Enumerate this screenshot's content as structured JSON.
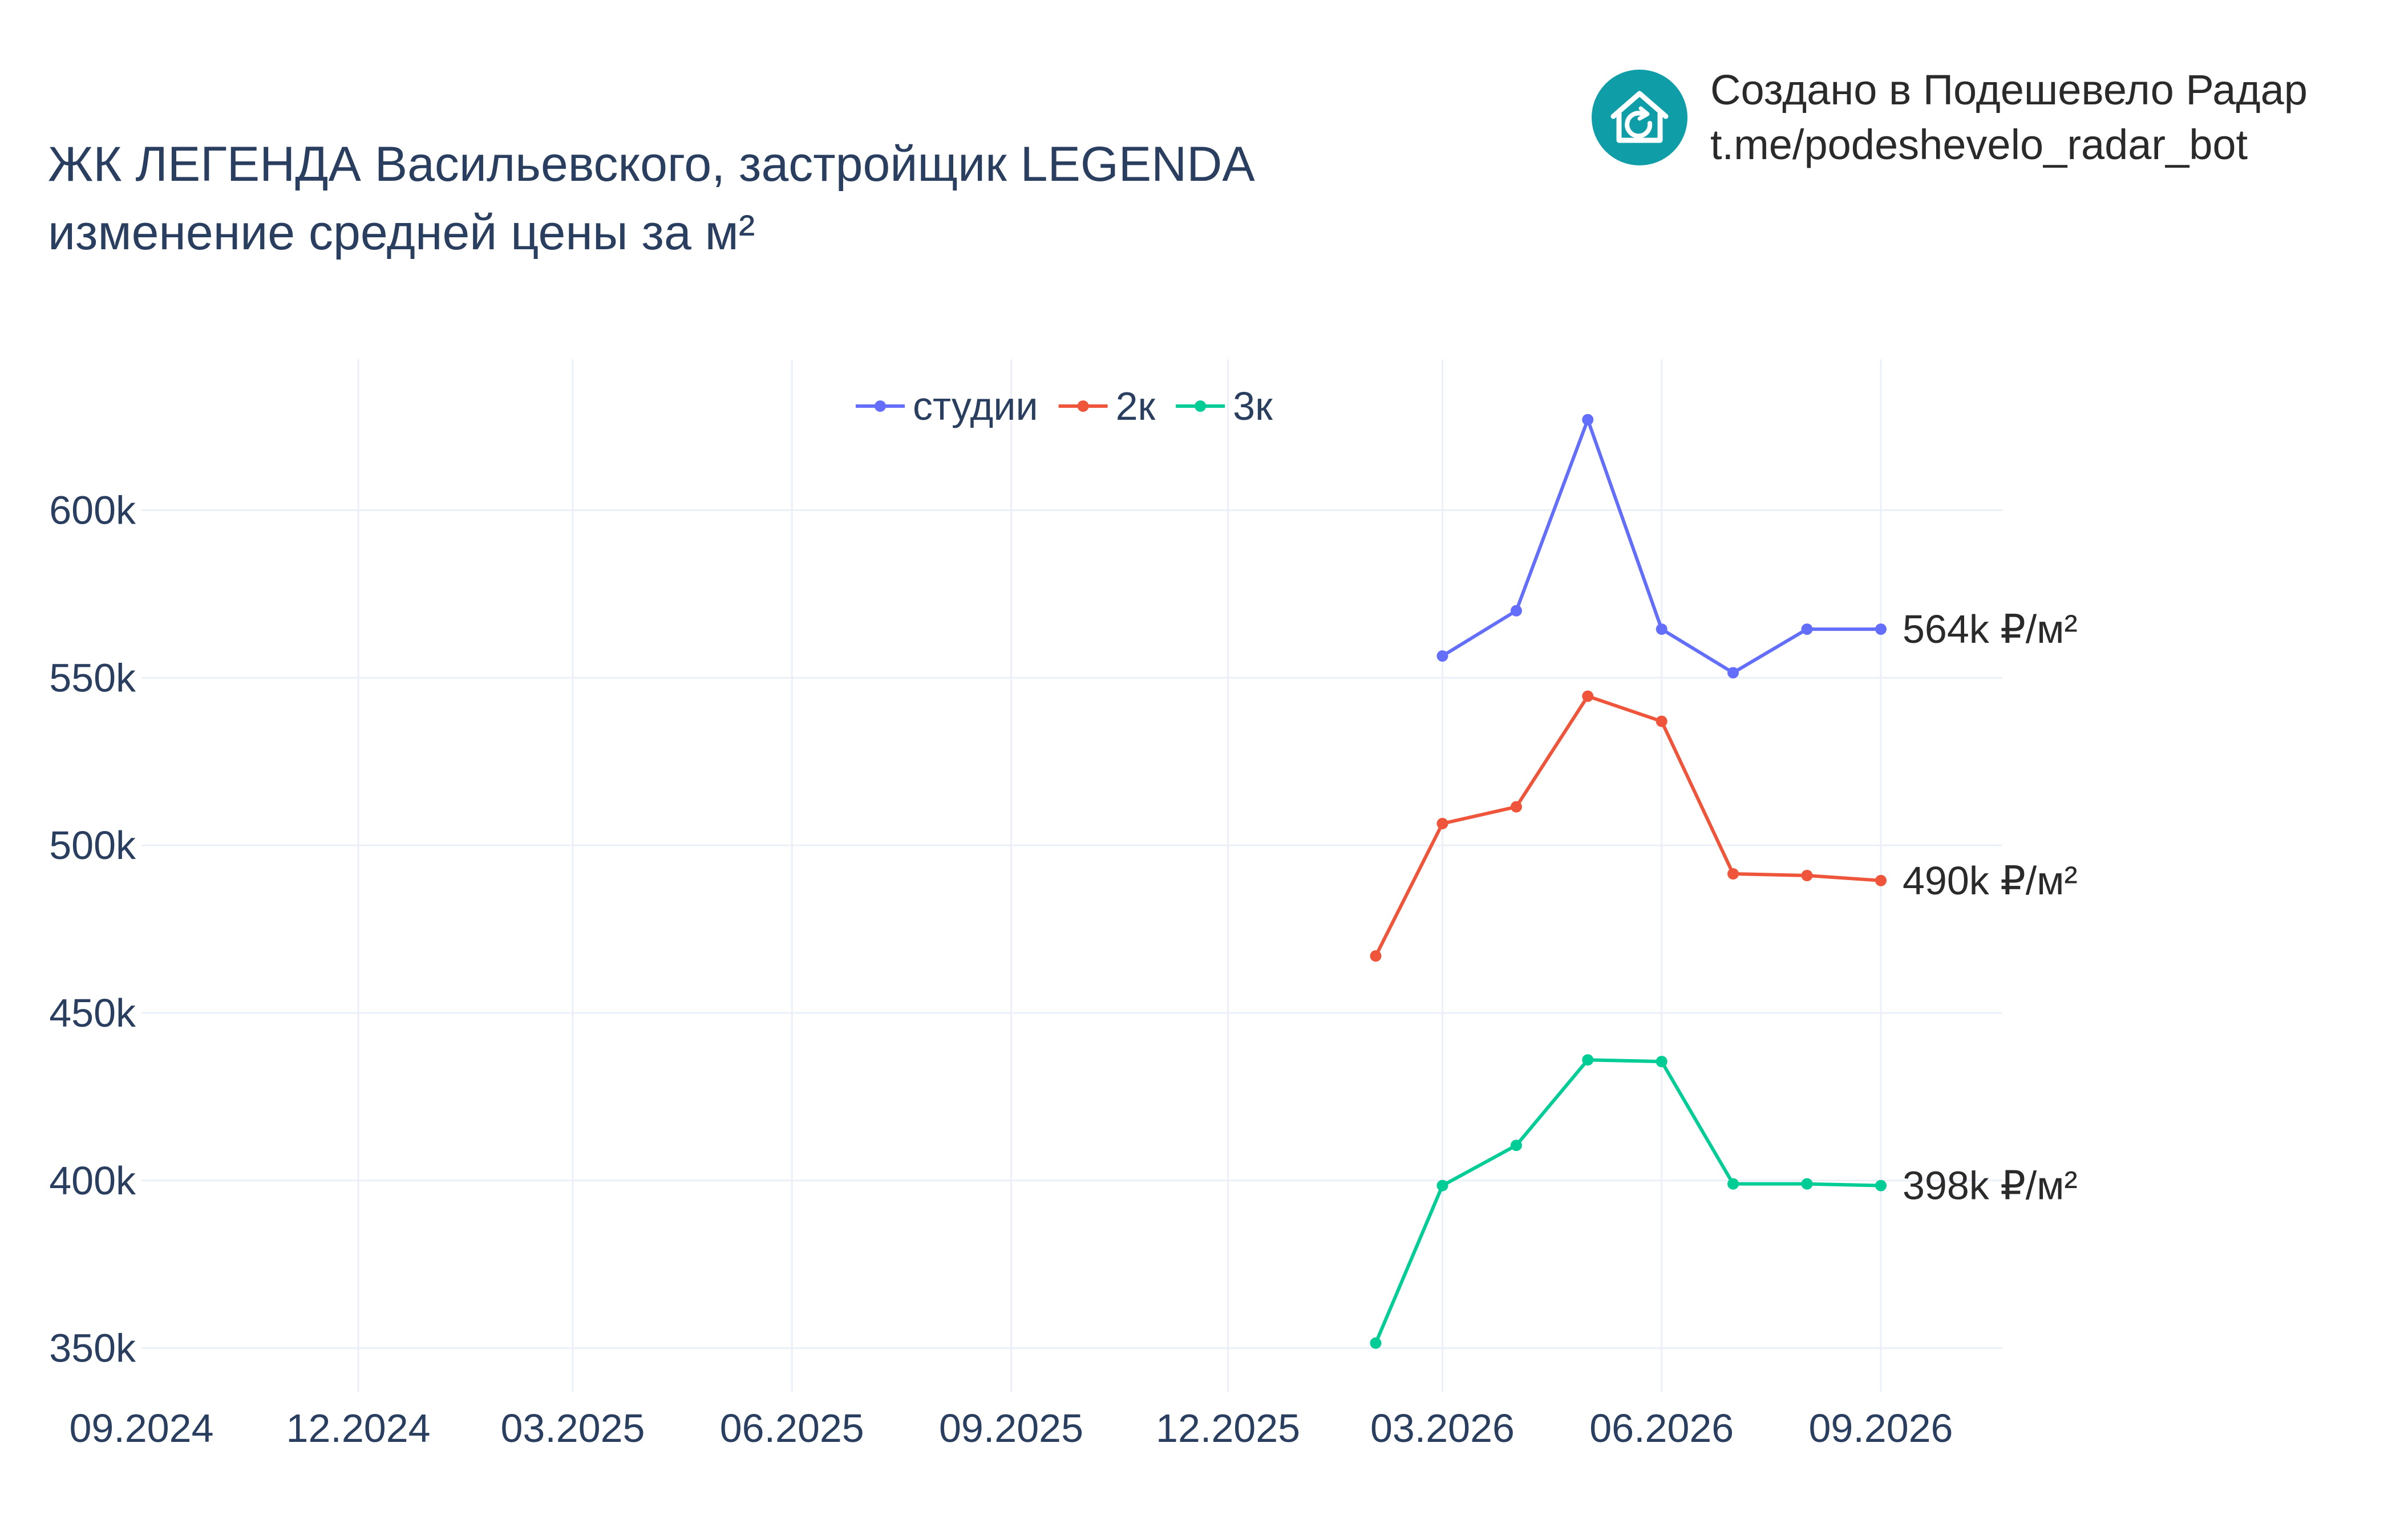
{
  "title": {
    "line1": "ЖК ЛЕГЕНДА Васильевского, застройщик LEGENDA",
    "line2": "изменение средней цены за м²"
  },
  "branding": {
    "line1": "Создано в Подешевело Радар",
    "line2": "t.me/podeshevelo_radar_bot",
    "logo_icon": "house-refresh-icon",
    "logo_color": "#0f9ea7"
  },
  "chart_data": {
    "type": "line",
    "x_axis": {
      "type": "date",
      "range": [
        "2024-09-01",
        "2026-10-22"
      ],
      "ticks": [
        {
          "value": "2024-09-01",
          "label": "09.2024"
        },
        {
          "value": "2024-12-01",
          "label": "12.2024"
        },
        {
          "value": "2025-03-01",
          "label": "03.2025"
        },
        {
          "value": "2025-06-01",
          "label": "06.2025"
        },
        {
          "value": "2025-09-01",
          "label": "09.2025"
        },
        {
          "value": "2025-12-01",
          "label": "12.2025"
        },
        {
          "value": "2026-03-01",
          "label": "03.2026"
        },
        {
          "value": "2026-06-01",
          "label": "06.2026"
        },
        {
          "value": "2026-09-01",
          "label": "09.2026"
        }
      ]
    },
    "y_axis": {
      "range": [
        337000,
        645000
      ],
      "ticks": [
        {
          "value": 350000,
          "label": "350k"
        },
        {
          "value": 400000,
          "label": "400k"
        },
        {
          "value": 450000,
          "label": "450k"
        },
        {
          "value": 500000,
          "label": "500k"
        },
        {
          "value": 550000,
          "label": "550k"
        },
        {
          "value": 600000,
          "label": "600k"
        }
      ]
    },
    "grid": true,
    "legend_position": "top-center",
    "series": [
      {
        "name": "студии",
        "color": "#636efa",
        "end_label": "564k ₽/м²",
        "points": [
          {
            "x": "2026-03-01",
            "y": 556500
          },
          {
            "x": "2026-04-01",
            "y": 570000
          },
          {
            "x": "2026-05-01",
            "y": 627000
          },
          {
            "x": "2026-06-01",
            "y": 564500
          },
          {
            "x": "2026-07-01",
            "y": 551500
          },
          {
            "x": "2026-08-01",
            "y": 564500
          },
          {
            "x": "2026-09-01",
            "y": 564500
          }
        ]
      },
      {
        "name": "2к",
        "color": "#ef553b",
        "end_label": "490k ₽/м²",
        "points": [
          {
            "x": "2026-02-01",
            "y": 467000
          },
          {
            "x": "2026-03-01",
            "y": 506500
          },
          {
            "x": "2026-04-01",
            "y": 511500
          },
          {
            "x": "2026-05-01",
            "y": 544500
          },
          {
            "x": "2026-06-01",
            "y": 537000
          },
          {
            "x": "2026-07-01",
            "y": 491500
          },
          {
            "x": "2026-08-01",
            "y": 491000
          },
          {
            "x": "2026-09-01",
            "y": 489500
          }
        ]
      },
      {
        "name": "3к",
        "color": "#00cc96",
        "end_label": "398k ₽/м²",
        "points": [
          {
            "x": "2026-02-01",
            "y": 351500
          },
          {
            "x": "2026-03-01",
            "y": 398500
          },
          {
            "x": "2026-04-01",
            "y": 410500
          },
          {
            "x": "2026-05-01",
            "y": 436000
          },
          {
            "x": "2026-06-01",
            "y": 435500
          },
          {
            "x": "2026-07-01",
            "y": 399000
          },
          {
            "x": "2026-08-01",
            "y": 399000
          },
          {
            "x": "2026-09-01",
            "y": 398500
          }
        ]
      }
    ]
  }
}
